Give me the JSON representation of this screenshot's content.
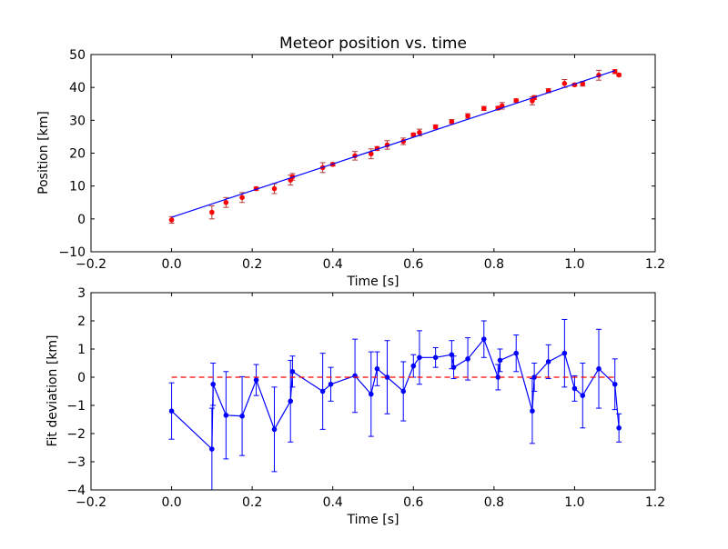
{
  "chart_data": [
    {
      "type": "scatter",
      "title": "Meteor position vs. time",
      "xlabel": "Time [s]",
      "ylabel": "Position [km]",
      "xlim": [
        -0.2,
        1.2
      ],
      "ylim": [
        -10,
        50
      ],
      "xticks": [
        -0.2,
        0.0,
        0.2,
        0.4,
        0.6,
        0.8,
        1.0,
        1.2
      ],
      "xtick_labels": [
        "−0.2",
        "0.0",
        "0.2",
        "0.4",
        "0.6",
        "0.8",
        "1.0",
        "1.2"
      ],
      "yticks": [
        -10,
        0,
        10,
        20,
        30,
        40,
        50
      ],
      "ytick_labels": [
        "−10",
        "0",
        "10",
        "20",
        "30",
        "40",
        "50"
      ],
      "grid": false,
      "series": [
        {
          "kind": "errorbar-points",
          "color": "#ff0000",
          "x": [
            0.0,
            0.1,
            0.135,
            0.175,
            0.21,
            0.255,
            0.295,
            0.3,
            0.375,
            0.4,
            0.455,
            0.495,
            0.51,
            0.535,
            0.575,
            0.6,
            0.615,
            0.655,
            0.695,
            0.735,
            0.775,
            0.81,
            0.82,
            0.855,
            0.895,
            0.9,
            0.935,
            0.975,
            1.0,
            1.02,
            1.06,
            1.1,
            1.11
          ],
          "y": [
            -0.3,
            2.0,
            5.0,
            6.5,
            9.2,
            9.2,
            11.8,
            12.8,
            15.6,
            16.6,
            19.2,
            19.8,
            21.4,
            22.5,
            23.6,
            25.6,
            26.3,
            28.0,
            29.6,
            31.3,
            33.6,
            33.7,
            34.4,
            36.0,
            35.9,
            36.9,
            39.0,
            41.2,
            40.8,
            41.1,
            43.7,
            44.8,
            43.8
          ],
          "yerr": [
            1.0,
            2.0,
            1.5,
            1.5,
            0.5,
            1.5,
            1.5,
            1.0,
            1.5,
            0.5,
            1.3,
            1.5,
            0.6,
            1.3,
            1.0,
            0.5,
            1.0,
            0.6,
            0.6,
            0.7,
            0.6,
            0.5,
            1.0,
            0.5,
            1.2,
            0.6,
            0.6,
            1.2,
            0.4,
            0.7,
            1.5,
            0.6,
            0.4
          ]
        },
        {
          "kind": "line",
          "color": "#0000ff",
          "x": [
            0.0,
            1.1
          ],
          "y": [
            0.5,
            45.1
          ]
        }
      ]
    },
    {
      "type": "line",
      "title": "",
      "xlabel": "Time [s]",
      "ylabel": "Fit deviation [km]",
      "xlim": [
        -0.2,
        1.2
      ],
      "ylim": [
        -4,
        3
      ],
      "xticks": [
        -0.2,
        0.0,
        0.2,
        0.4,
        0.6,
        0.8,
        1.0,
        1.2
      ],
      "xtick_labels": [
        "−0.2",
        "0.0",
        "0.2",
        "0.4",
        "0.6",
        "0.8",
        "1.0",
        "1.2"
      ],
      "yticks": [
        -4,
        -3,
        -2,
        -1,
        0,
        1,
        2,
        3
      ],
      "ytick_labels": [
        "−4",
        "−3",
        "−2",
        "−1",
        "0",
        "1",
        "2",
        "3"
      ],
      "grid": false,
      "series": [
        {
          "kind": "errorbar-line",
          "color": "#0000ff",
          "x": [
            0.0,
            0.1,
            0.103,
            0.135,
            0.175,
            0.21,
            0.255,
            0.295,
            0.3,
            0.375,
            0.395,
            0.455,
            0.495,
            0.51,
            0.535,
            0.575,
            0.6,
            0.615,
            0.655,
            0.695,
            0.7,
            0.735,
            0.775,
            0.81,
            0.815,
            0.855,
            0.895,
            0.9,
            0.935,
            0.975,
            1.0,
            1.02,
            1.06,
            1.1,
            1.11
          ],
          "y": [
            -1.2,
            -2.55,
            -0.25,
            -1.35,
            -1.38,
            -0.1,
            -1.85,
            -0.85,
            0.2,
            -0.5,
            -0.25,
            0.05,
            -0.6,
            0.3,
            0.0,
            -0.5,
            0.4,
            0.7,
            0.7,
            0.8,
            0.35,
            0.65,
            1.35,
            0.0,
            0.6,
            0.85,
            -1.2,
            0.0,
            0.55,
            0.85,
            -0.4,
            -0.65,
            0.3,
            -0.25,
            -1.8
          ],
          "yerr": [
            1.0,
            1.45,
            0.75,
            1.55,
            1.4,
            0.55,
            1.5,
            1.45,
            0.55,
            1.35,
            0.6,
            1.3,
            1.5,
            0.6,
            1.3,
            1.05,
            0.4,
            0.95,
            0.35,
            0.5,
            0.4,
            0.75,
            0.65,
            0.45,
            0.4,
            0.65,
            1.15,
            0.5,
            0.6,
            1.2,
            0.45,
            1.15,
            1.4,
            0.9,
            0.5
          ]
        },
        {
          "kind": "dashed-line",
          "color": "#ff0000",
          "x": [
            0.0,
            1.1
          ],
          "y": [
            0.0,
            0.0
          ]
        }
      ]
    }
  ]
}
